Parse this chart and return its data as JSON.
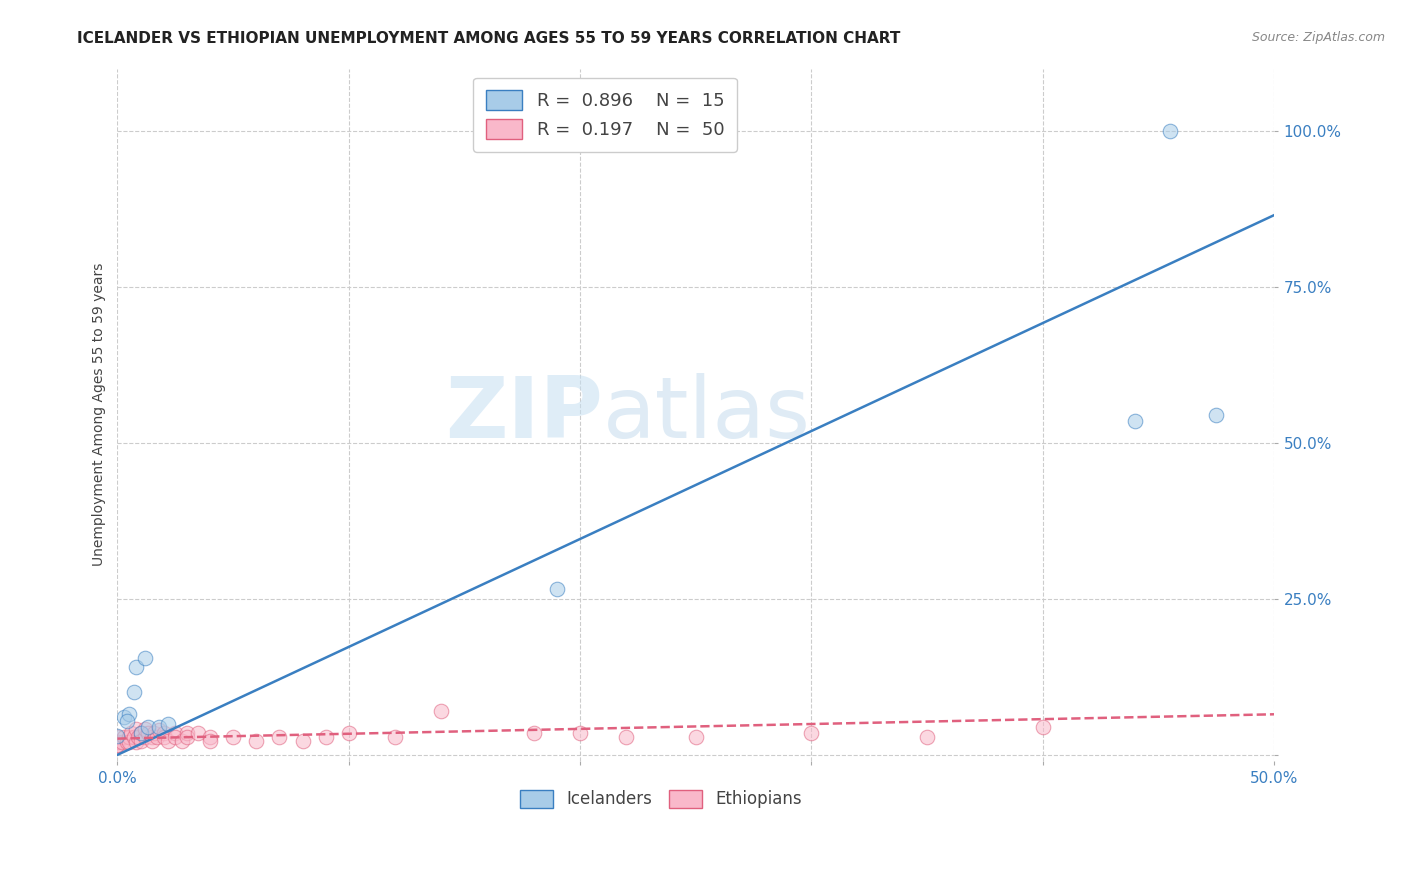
{
  "title": "ICELANDER VS ETHIOPIAN UNEMPLOYMENT AMONG AGES 55 TO 59 YEARS CORRELATION CHART",
  "source": "Source: ZipAtlas.com",
  "ylabel": "Unemployment Among Ages 55 to 59 years",
  "xlim": [
    0.0,
    0.5
  ],
  "ylim": [
    -0.01,
    1.1
  ],
  "xticks": [
    0.0,
    0.1,
    0.2,
    0.3,
    0.4,
    0.5
  ],
  "yticks": [
    0.0,
    0.25,
    0.5,
    0.75,
    1.0
  ],
  "ytick_labels": [
    "",
    "25.0%",
    "50.0%",
    "75.0%",
    "100.0%"
  ],
  "xtick_labels": [
    "0.0%",
    "",
    "",
    "",
    "",
    "50.0%"
  ],
  "watermark_zip": "ZIP",
  "watermark_atlas": "atlas",
  "legend_icelander_R": "0.896",
  "legend_icelander_N": "15",
  "legend_ethiopian_R": "0.197",
  "legend_ethiopian_N": "50",
  "icelander_color": "#a8cce8",
  "ethiopian_color": "#f9b8ca",
  "icelander_line_color": "#3a7fc1",
  "ethiopian_line_color": "#e0607e",
  "icelander_regression": [
    0.0,
    0.5,
    0.0,
    0.865
  ],
  "ethiopian_regression": [
    0.0,
    0.5,
    0.026,
    0.065
  ],
  "icelander_points": [
    [
      0.0,
      0.03
    ],
    [
      0.003,
      0.06
    ],
    [
      0.005,
      0.065
    ],
    [
      0.007,
      0.1
    ],
    [
      0.008,
      0.14
    ],
    [
      0.01,
      0.035
    ],
    [
      0.012,
      0.155
    ],
    [
      0.013,
      0.045
    ],
    [
      0.018,
      0.045
    ],
    [
      0.022,
      0.05
    ],
    [
      0.19,
      0.265
    ],
    [
      0.44,
      0.535
    ],
    [
      0.455,
      1.0
    ],
    [
      0.475,
      0.545
    ],
    [
      0.004,
      0.055
    ]
  ],
  "ethiopian_points": [
    [
      0.0,
      0.015
    ],
    [
      0.0,
      0.02
    ],
    [
      0.0,
      0.028
    ],
    [
      0.0,
      0.015
    ],
    [
      0.002,
      0.02
    ],
    [
      0.003,
      0.028
    ],
    [
      0.004,
      0.02
    ],
    [
      0.005,
      0.028
    ],
    [
      0.005,
      0.02
    ],
    [
      0.006,
      0.035
    ],
    [
      0.007,
      0.028
    ],
    [
      0.008,
      0.02
    ],
    [
      0.008,
      0.042
    ],
    [
      0.009,
      0.028
    ],
    [
      0.01,
      0.035
    ],
    [
      0.01,
      0.022
    ],
    [
      0.012,
      0.028
    ],
    [
      0.012,
      0.042
    ],
    [
      0.013,
      0.035
    ],
    [
      0.015,
      0.028
    ],
    [
      0.015,
      0.022
    ],
    [
      0.016,
      0.035
    ],
    [
      0.017,
      0.028
    ],
    [
      0.018,
      0.04
    ],
    [
      0.02,
      0.035
    ],
    [
      0.02,
      0.028
    ],
    [
      0.022,
      0.022
    ],
    [
      0.025,
      0.035
    ],
    [
      0.025,
      0.028
    ],
    [
      0.028,
      0.022
    ],
    [
      0.03,
      0.035
    ],
    [
      0.03,
      0.028
    ],
    [
      0.035,
      0.035
    ],
    [
      0.04,
      0.028
    ],
    [
      0.04,
      0.022
    ],
    [
      0.05,
      0.028
    ],
    [
      0.06,
      0.022
    ],
    [
      0.07,
      0.028
    ],
    [
      0.08,
      0.022
    ],
    [
      0.09,
      0.028
    ],
    [
      0.1,
      0.035
    ],
    [
      0.12,
      0.028
    ],
    [
      0.14,
      0.07
    ],
    [
      0.18,
      0.035
    ],
    [
      0.2,
      0.035
    ],
    [
      0.22,
      0.028
    ],
    [
      0.25,
      0.028
    ],
    [
      0.3,
      0.035
    ],
    [
      0.35,
      0.028
    ],
    [
      0.4,
      0.045
    ]
  ],
  "background_color": "#ffffff",
  "grid_color": "#cccccc",
  "title_fontsize": 11,
  "label_fontsize": 10,
  "tick_fontsize": 11,
  "source_fontsize": 9
}
